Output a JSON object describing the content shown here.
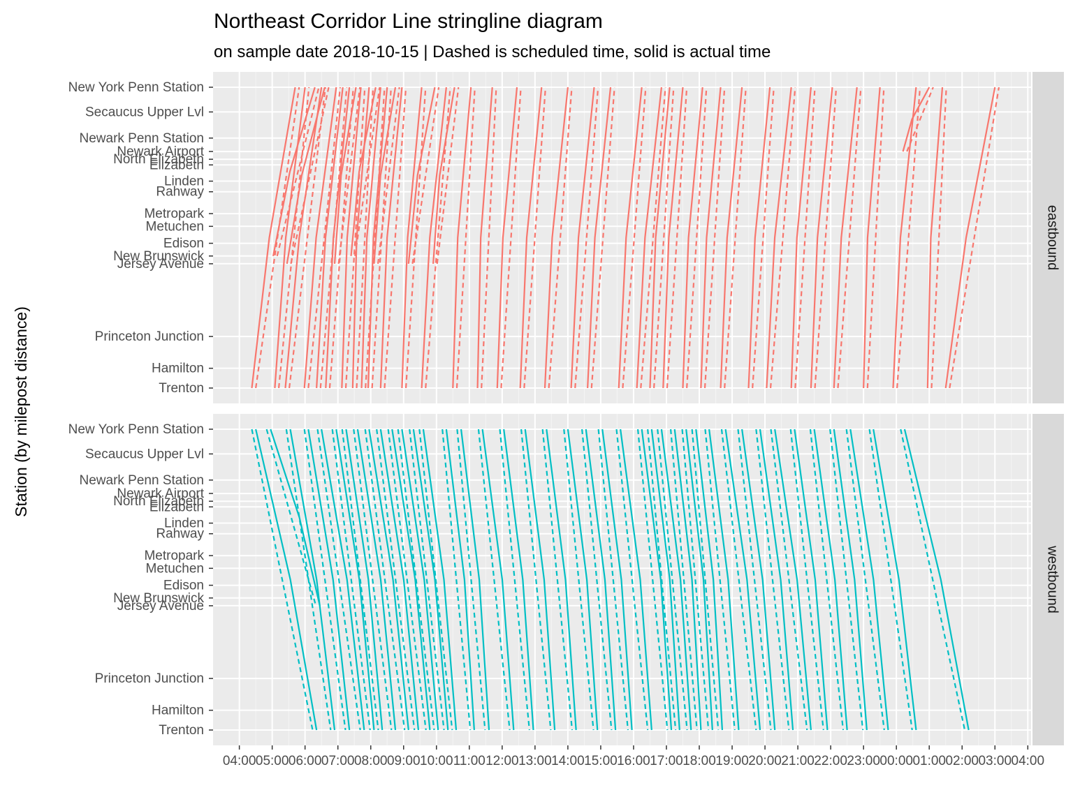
{
  "chart_data": {
    "type": "line",
    "title": "Northeast Corridor Line stringline diagram",
    "subtitle": "on sample date 2018-10-15 | Dashed is scheduled time, solid is actual time",
    "ylabel": "Station (by milepost distance)",
    "xlabel": "",
    "x_ticks": [
      "04:00",
      "05:00",
      "06:00",
      "07:00",
      "08:00",
      "09:00",
      "10:00",
      "11:00",
      "12:00",
      "13:00",
      "14:00",
      "15:00",
      "16:00",
      "17:00",
      "18:00",
      "19:00",
      "20:00",
      "21:00",
      "22:00",
      "23:00",
      "00:00",
      "01:00",
      "02:00",
      "03:00",
      "04:00"
    ],
    "xlim_hours": [
      3.2,
      28.1
    ],
    "stations": [
      {
        "name": "New York Penn Station",
        "mile": 0
      },
      {
        "name": "Secaucus Upper Lvl",
        "mile": 3.5
      },
      {
        "name": "Newark Penn Station",
        "mile": 7.2
      },
      {
        "name": "Newark Airport",
        "mile": 9.1
      },
      {
        "name": "North Elizabeth",
        "mile": 10.2
      },
      {
        "name": "Elizabeth",
        "mile": 11.0
      },
      {
        "name": "Linden",
        "mile": 13.3
      },
      {
        "name": "Rahway",
        "mile": 14.8
      },
      {
        "name": "Metropark",
        "mile": 17.9
      },
      {
        "name": "Metuchen",
        "mile": 19.7
      },
      {
        "name": "Edison",
        "mile": 22.1
      },
      {
        "name": "New Brunswick",
        "mile": 23.9
      },
      {
        "name": "Jersey Avenue",
        "mile": 25.0
      },
      {
        "name": "Princeton Junction",
        "mile": 35.3
      },
      {
        "name": "Hamilton",
        "mile": 39.8
      },
      {
        "name": "Trenton",
        "mile": 42.6
      }
    ],
    "ylim_miles": [
      0,
      42.6
    ],
    "panels": [
      "eastbound",
      "westbound"
    ],
    "series": [
      {
        "name": "eastbound",
        "color": "#F8766D"
      },
      {
        "name": "westbound",
        "color": "#00BFC4"
      }
    ],
    "line_styles": {
      "scheduled": "dashed",
      "actual": "solid"
    },
    "grid": true,
    "eastbound_trips_actual": [
      {
        "from": "Trenton",
        "start": 4.38,
        "end": 5.7
      },
      {
        "from": "Trenton",
        "start": 5.08,
        "end": 6.0
      },
      {
        "from": "New Brunswick",
        "start": 5.03,
        "end": 6.3
      },
      {
        "from": "Trenton",
        "start": 5.4,
        "end": 6.5
      },
      {
        "from": "Jersey Avenue",
        "start": 5.45,
        "end": 6.6
      },
      {
        "from": "Trenton",
        "start": 5.98,
        "end": 6.95
      },
      {
        "from": "Trenton",
        "start": 6.35,
        "end": 7.15
      },
      {
        "from": "Trenton",
        "start": 6.63,
        "end": 7.35
      },
      {
        "from": "Jersey Avenue",
        "start": 6.9,
        "end": 7.55
      },
      {
        "from": "Trenton",
        "start": 7.12,
        "end": 7.7
      },
      {
        "from": "Trenton",
        "start": 7.45,
        "end": 7.95
      },
      {
        "from": "New Brunswick",
        "start": 7.4,
        "end": 8.15
      },
      {
        "from": "Trenton",
        "start": 7.72,
        "end": 8.3
      },
      {
        "from": "Trenton",
        "start": 7.92,
        "end": 8.5
      },
      {
        "from": "Jersey Avenue",
        "start": 8.1,
        "end": 8.75
      },
      {
        "from": "Trenton",
        "start": 8.3,
        "end": 8.95
      },
      {
        "from": "Trenton",
        "start": 8.95,
        "end": 9.55
      },
      {
        "from": "Jersey Avenue",
        "start": 9.15,
        "end": 9.95
      },
      {
        "from": "Trenton",
        "start": 9.55,
        "end": 10.3
      },
      {
        "from": "Jersey Avenue",
        "start": 9.9,
        "end": 10.55
      },
      {
        "from": "Trenton",
        "start": 10.5,
        "end": 11.05
      },
      {
        "from": "Trenton",
        "start": 11.25,
        "end": 11.7
      },
      {
        "from": "Trenton",
        "start": 11.85,
        "end": 12.45
      },
      {
        "from": "Trenton",
        "start": 12.55,
        "end": 13.2
      },
      {
        "from": "Trenton",
        "start": 13.3,
        "end": 14.0
      },
      {
        "from": "Trenton",
        "start": 14.1,
        "end": 14.8
      },
      {
        "from": "Trenton",
        "start": 14.6,
        "end": 15.3
      },
      {
        "from": "Trenton",
        "start": 15.55,
        "end": 16.25
      },
      {
        "from": "Trenton",
        "start": 16.1,
        "end": 16.85
      },
      {
        "from": "Trenton",
        "start": 16.5,
        "end": 17.1
      },
      {
        "from": "Trenton",
        "start": 16.9,
        "end": 17.5
      },
      {
        "from": "Trenton",
        "start": 17.5,
        "end": 18.1
      },
      {
        "from": "Trenton",
        "start": 18.05,
        "end": 18.65
      },
      {
        "from": "Trenton",
        "start": 18.65,
        "end": 19.3
      },
      {
        "from": "Trenton",
        "start": 19.5,
        "end": 20.15
      },
      {
        "from": "Trenton",
        "start": 20.05,
        "end": 20.8
      },
      {
        "from": "Trenton",
        "start": 20.8,
        "end": 21.4
      },
      {
        "from": "Trenton",
        "start": 21.4,
        "end": 22.05
      },
      {
        "from": "Trenton",
        "start": 22.1,
        "end": 22.8
      },
      {
        "from": "Trenton",
        "start": 23.0,
        "end": 23.5
      },
      {
        "from": "Trenton",
        "start": 23.9,
        "end": 24.6
      },
      {
        "from": "Newark Airport",
        "start": 24.2,
        "end": 25.0
      },
      {
        "from": "Trenton",
        "start": 24.95,
        "end": 25.4
      },
      {
        "from": "Trenton",
        "start": 25.5,
        "end": 27.0
      }
    ],
    "westbound_trips_actual": [
      {
        "to": "Trenton",
        "start": 4.5,
        "end": 6.35
      },
      {
        "to": "Jersey Avenue",
        "start": 4.95,
        "end": 6.45
      },
      {
        "to": "Trenton",
        "start": 5.55,
        "end": 6.9
      },
      {
        "to": "Trenton",
        "start": 6.1,
        "end": 7.35
      },
      {
        "to": "Trenton",
        "start": 6.5,
        "end": 7.8
      },
      {
        "to": "Trenton",
        "start": 6.95,
        "end": 8.1
      },
      {
        "to": "Trenton",
        "start": 7.25,
        "end": 8.35
      },
      {
        "to": "Trenton",
        "start": 7.6,
        "end": 8.75
      },
      {
        "to": "Trenton",
        "start": 7.95,
        "end": 9.15
      },
      {
        "to": "Trenton",
        "start": 8.3,
        "end": 9.45
      },
      {
        "to": "Trenton",
        "start": 8.65,
        "end": 9.8
      },
      {
        "to": "Trenton",
        "start": 8.95,
        "end": 10.05
      },
      {
        "to": "Trenton",
        "start": 9.3,
        "end": 10.35
      },
      {
        "to": "Trenton",
        "start": 9.6,
        "end": 10.6
      },
      {
        "to": "Trenton",
        "start": 10.3,
        "end": 11.15
      },
      {
        "to": "Trenton",
        "start": 10.75,
        "end": 11.6
      },
      {
        "to": "Trenton",
        "start": 11.4,
        "end": 12.35
      },
      {
        "to": "Trenton",
        "start": 12.05,
        "end": 12.95
      },
      {
        "to": "Trenton",
        "start": 12.7,
        "end": 13.6
      },
      {
        "to": "Trenton",
        "start": 13.35,
        "end": 14.25
      },
      {
        "to": "Trenton",
        "start": 14.0,
        "end": 14.9
      },
      {
        "to": "Trenton",
        "start": 14.55,
        "end": 15.45
      },
      {
        "to": "Trenton",
        "start": 15.05,
        "end": 15.95
      },
      {
        "to": "Trenton",
        "start": 15.6,
        "end": 16.55
      },
      {
        "to": "Trenton",
        "start": 16.25,
        "end": 17.15
      },
      {
        "to": "Trenton",
        "start": 16.55,
        "end": 17.4
      },
      {
        "to": "Trenton",
        "start": 16.85,
        "end": 17.75
      },
      {
        "to": "Trenton",
        "start": 17.25,
        "end": 18.05
      },
      {
        "to": "Trenton",
        "start": 17.6,
        "end": 18.4
      },
      {
        "to": "Trenton",
        "start": 17.9,
        "end": 18.7
      },
      {
        "to": "Trenton",
        "start": 18.3,
        "end": 19.2
      },
      {
        "to": "Trenton",
        "start": 18.8,
        "end": 19.85
      },
      {
        "to": "Trenton",
        "start": 19.3,
        "end": 20.3
      },
      {
        "to": "Trenton",
        "start": 19.85,
        "end": 20.85
      },
      {
        "to": "Trenton",
        "start": 20.3,
        "end": 21.4
      },
      {
        "to": "Trenton",
        "start": 20.9,
        "end": 21.9
      },
      {
        "to": "Trenton",
        "start": 21.5,
        "end": 22.5
      },
      {
        "to": "Trenton",
        "start": 22.1,
        "end": 23.1
      },
      {
        "to": "Trenton",
        "start": 22.6,
        "end": 23.75
      },
      {
        "to": "Trenton",
        "start": 23.3,
        "end": 24.6
      },
      {
        "to": "Trenton",
        "start": 24.25,
        "end": 26.2
      }
    ]
  }
}
